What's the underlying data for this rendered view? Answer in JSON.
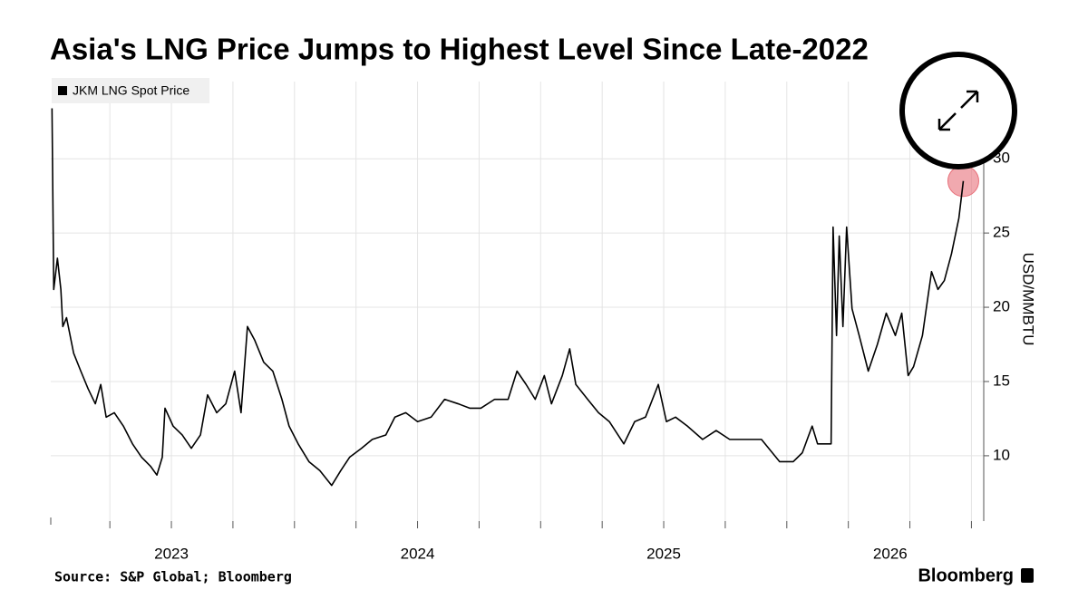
{
  "chart_data": {
    "type": "line",
    "title": "Asia's LNG Price Jumps to Highest Level Since Late-2022",
    "y_label": "USD/MMBTU",
    "source": "Source: S&P Global; Bloomberg",
    "brand": "Bloomberg",
    "x": [
      2023.015,
      2023.022,
      2023.037,
      2023.051,
      2023.059,
      2023.074,
      2023.103,
      2023.132,
      2023.162,
      2023.191,
      2023.213,
      2023.235,
      2023.268,
      2023.305,
      2023.342,
      2023.379,
      2023.415,
      2023.441,
      2023.463,
      2023.474,
      2023.507,
      2023.544,
      2023.581,
      2023.618,
      2023.647,
      2023.684,
      2023.721,
      2023.757,
      2023.783,
      2023.809,
      2023.838,
      2023.875,
      2023.912,
      2023.949,
      2023.978,
      2024.015,
      2024.059,
      2024.103,
      2024.151,
      2024.188,
      2024.224,
      2024.272,
      2024.316,
      2024.371,
      2024.408,
      2024.452,
      2024.5,
      2024.555,
      2024.61,
      2024.665,
      2024.713,
      2024.757,
      2024.813,
      2024.868,
      2024.904,
      2024.941,
      2024.978,
      2025.015,
      2025.044,
      2025.088,
      2025.118,
      2025.143,
      2025.191,
      2025.235,
      2025.279,
      2025.338,
      2025.382,
      2025.426,
      2025.478,
      2025.511,
      2025.548,
      2025.596,
      2025.658,
      2025.713,
      2025.768,
      2025.824,
      2025.897,
      2025.971,
      2026.026,
      2026.063,
      2026.103,
      2026.125,
      2026.162,
      2026.18,
      2026.188,
      2026.202,
      2026.213,
      2026.228,
      2026.243,
      2026.265,
      2026.294,
      2026.331,
      2026.368,
      2026.404,
      2026.441,
      2026.467,
      2026.493,
      2026.515,
      2026.551,
      2026.588,
      2026.614,
      2026.64,
      2026.669,
      2026.699,
      2026.717
    ],
    "series": [
      {
        "name": "JKM LNG Spot Price",
        "color": "#000000",
        "values": [
          33.4,
          21.2,
          23.3,
          21.2,
          18.7,
          19.3,
          16.9,
          15.7,
          14.5,
          13.5,
          14.8,
          12.6,
          12.9,
          12.0,
          10.8,
          9.9,
          9.3,
          8.7,
          9.9,
          13.2,
          12.0,
          11.4,
          10.5,
          11.4,
          14.1,
          12.9,
          13.5,
          15.7,
          12.9,
          18.7,
          17.8,
          16.3,
          15.7,
          13.8,
          12.0,
          10.8,
          9.6,
          9.0,
          8.0,
          9.0,
          9.9,
          10.5,
          11.1,
          11.4,
          12.6,
          12.9,
          12.3,
          12.6,
          13.8,
          13.5,
          13.2,
          13.2,
          13.8,
          13.8,
          15.7,
          14.8,
          13.8,
          15.4,
          13.5,
          15.4,
          17.2,
          14.8,
          13.8,
          12.9,
          12.3,
          10.8,
          12.3,
          12.6,
          14.8,
          12.3,
          12.6,
          12.0,
          11.1,
          11.7,
          11.1,
          11.1,
          11.1,
          9.6,
          9.6,
          10.2,
          12.0,
          10.8,
          10.8,
          10.8,
          25.4,
          18.1,
          24.8,
          18.7,
          25.4,
          19.9,
          18.1,
          15.7,
          17.5,
          19.6,
          18.1,
          19.6,
          15.4,
          16.0,
          18.1,
          22.4,
          21.2,
          21.8,
          23.6,
          26.0,
          28.5
        ]
      }
    ],
    "xlim": [
      2023.01,
      2026.8
    ],
    "xticks": [
      {
        "value": 2023.5,
        "label": "2023"
      },
      {
        "value": 2024.5,
        "label": "2024"
      },
      {
        "value": 2025.5,
        "label": "2025"
      },
      {
        "value": 2026.42,
        "label": "2026"
      }
    ],
    "xgrid": [
      2023.25,
      2023.5,
      2023.75,
      2024,
      2024.25,
      2024.5,
      2024.75,
      2025,
      2025.25,
      2025.5,
      2025.75,
      2026,
      2026.25,
      2026.5,
      2026.75
    ],
    "ylim": [
      5.6,
      35.2
    ],
    "yticks": [
      10,
      15,
      20,
      25,
      30
    ],
    "grid": true,
    "highlight_last": true,
    "highlight_color": "#e8707a"
  }
}
